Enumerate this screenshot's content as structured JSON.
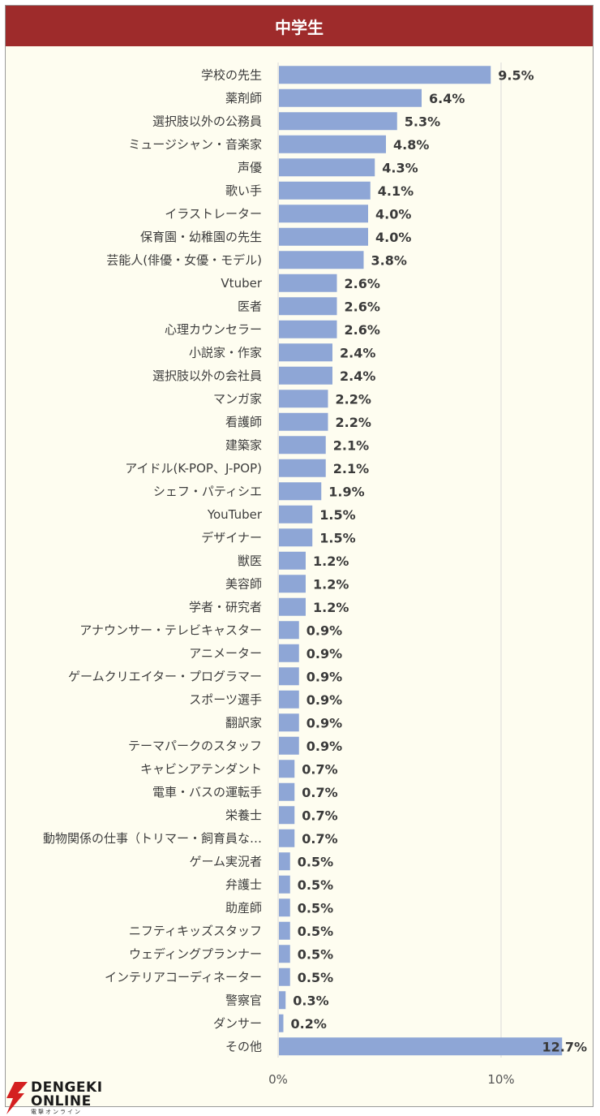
{
  "header": {
    "title": "中学生"
  },
  "colors": {
    "header": "#9e2b2b",
    "bar": "#8ea6d6",
    "background": "#fefdf0"
  },
  "logo": {
    "line1": "DENGEKI",
    "line2": "ONLINE",
    "sub": "電撃オンライン",
    "icon": "lightning-bolt-icon"
  },
  "chart_data": {
    "type": "bar",
    "orientation": "horizontal",
    "title": "",
    "xlabel": "",
    "ylabel": "",
    "xlim": [
      0,
      0.13
    ],
    "x_ticks": [
      "0%",
      "10%"
    ],
    "grid": true,
    "categories": [
      "学校の先生",
      "薬剤師",
      "選択肢以外の公務員",
      "ミュージシャン・音楽家",
      "声優",
      "歌い手",
      "イラストレーター",
      "保育園・幼稚園の先生",
      "芸能人(俳優・女優・モデル)",
      "Vtuber",
      "医者",
      "心理カウンセラー",
      "小説家・作家",
      "選択肢以外の会社員",
      "マンガ家",
      "看護師",
      "建築家",
      "アイドル(K-POP、J-POP)",
      "シェフ・パティシエ",
      "YouTuber",
      "デザイナー",
      "獣医",
      "美容師",
      "学者・研究者",
      "アナウンサー・テレビキャスター",
      "アニメーター",
      "ゲームクリエイター・プログラマー",
      "スポーツ選手",
      "翻訳家",
      "テーマパークのスタッフ",
      "キャビンアテンダント",
      "電車・バスの運転手",
      "栄養士",
      "動物関係の仕事（トリマー・飼育員な…",
      "ゲーム実況者",
      "弁護士",
      "助産師",
      "ニフティキッズスタッフ",
      "ウェディングプランナー",
      "インテリアコーディネーター",
      "警察官",
      "ダンサー",
      "その他"
    ],
    "values": [
      0.095,
      0.064,
      0.053,
      0.048,
      0.043,
      0.041,
      0.04,
      0.04,
      0.038,
      0.026,
      0.026,
      0.026,
      0.024,
      0.024,
      0.022,
      0.022,
      0.021,
      0.021,
      0.019,
      0.015,
      0.015,
      0.012,
      0.012,
      0.012,
      0.009,
      0.009,
      0.009,
      0.009,
      0.009,
      0.009,
      0.007,
      0.007,
      0.007,
      0.007,
      0.005,
      0.005,
      0.005,
      0.005,
      0.005,
      0.005,
      0.003,
      0.002,
      0.127
    ],
    "labels": [
      "9.5%",
      "6.4%",
      "5.3%",
      "4.8%",
      "4.3%",
      "4.1%",
      "4.0%",
      "4.0%",
      "3.8%",
      "2.6%",
      "2.6%",
      "2.6%",
      "2.4%",
      "2.4%",
      "2.2%",
      "2.2%",
      "2.1%",
      "2.1%",
      "1.9%",
      "1.5%",
      "1.5%",
      "1.2%",
      "1.2%",
      "1.2%",
      "0.9%",
      "0.9%",
      "0.9%",
      "0.9%",
      "0.9%",
      "0.9%",
      "0.7%",
      "0.7%",
      "0.7%",
      "0.7%",
      "0.5%",
      "0.5%",
      "0.5%",
      "0.5%",
      "0.5%",
      "0.5%",
      "0.3%",
      "0.2%",
      "12.7%"
    ]
  }
}
